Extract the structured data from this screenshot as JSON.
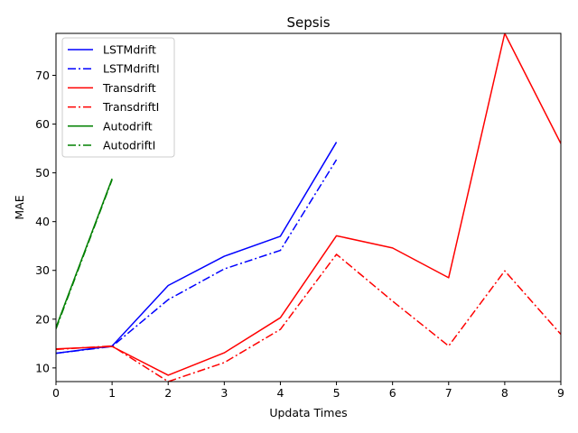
{
  "chart_data": {
    "type": "line",
    "title": "Sepsis",
    "xlabel": "Updata Times",
    "ylabel": "MAE",
    "xlim": [
      0,
      9
    ],
    "ylim": [
      7.2,
      78.6
    ],
    "xticks": [
      0,
      1,
      2,
      3,
      4,
      5,
      6,
      7,
      8,
      9
    ],
    "yticks": [
      10,
      20,
      30,
      40,
      50,
      60,
      70
    ],
    "grid": false,
    "legend_position": "top-left",
    "series": [
      {
        "name": "LSTMdrift",
        "color": "#0000ff",
        "dash": "solid",
        "x": [
          0,
          1,
          2,
          3,
          4,
          5
        ],
        "y": [
          13.0,
          14.5,
          26.9,
          32.9,
          37.0,
          56.3
        ]
      },
      {
        "name": "LSTMdriftI",
        "color": "#0000ff",
        "dash": "dashdot",
        "x": [
          0,
          1,
          2,
          3,
          4,
          5
        ],
        "y": [
          13.0,
          14.4,
          24.0,
          30.3,
          34.1,
          52.7
        ]
      },
      {
        "name": "Transdrift",
        "color": "#ff0000",
        "dash": "solid",
        "x": [
          0,
          1,
          2,
          3,
          4,
          5,
          6,
          7,
          8,
          9
        ],
        "y": [
          13.9,
          14.4,
          8.5,
          13.1,
          20.3,
          37.1,
          34.6,
          28.5,
          78.6,
          56.0
        ]
      },
      {
        "name": "TransdriftI",
        "color": "#ff0000",
        "dash": "dashdot",
        "x": [
          0,
          1,
          2,
          3,
          4,
          5,
          6,
          7,
          8,
          9
        ],
        "y": [
          13.8,
          14.5,
          7.2,
          11.1,
          17.9,
          33.3,
          23.7,
          14.5,
          29.9,
          16.9
        ]
      },
      {
        "name": "Autodrift",
        "color": "#008000",
        "dash": "solid",
        "x": [
          0,
          1
        ],
        "y": [
          18.3,
          48.8
        ]
      },
      {
        "name": "AutodriftI",
        "color": "#008000",
        "dash": "dashdot",
        "x": [
          0,
          1
        ],
        "y": [
          18.0,
          48.6
        ]
      }
    ]
  }
}
